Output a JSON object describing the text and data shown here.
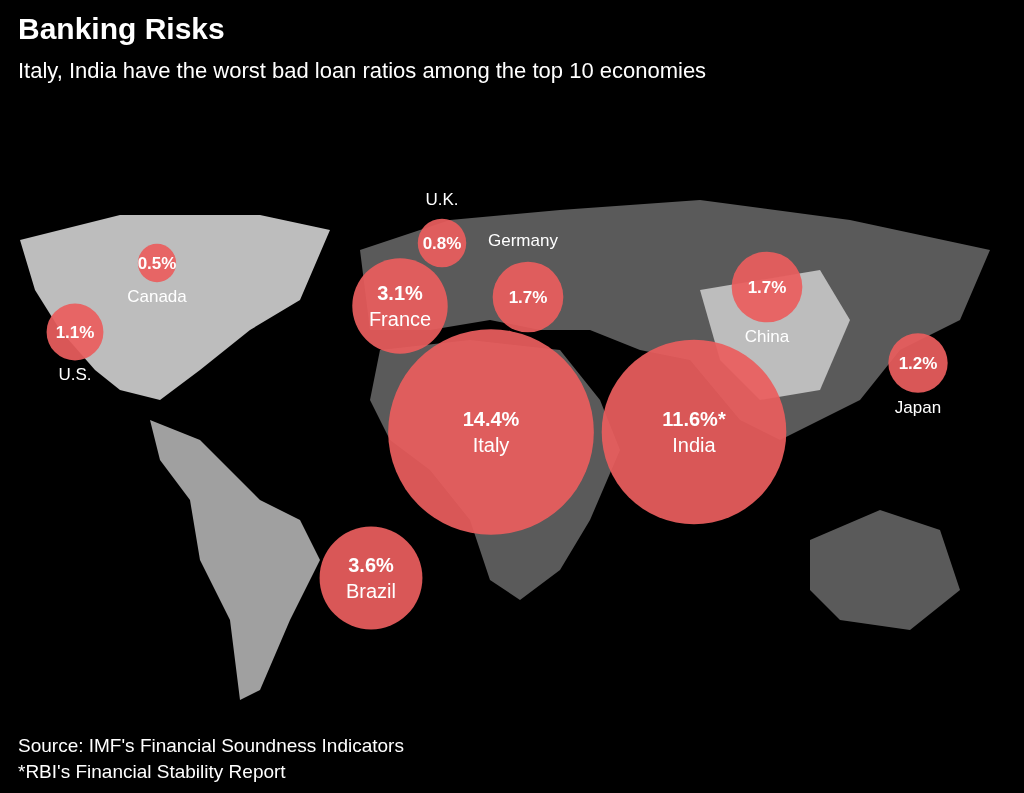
{
  "chart_data": {
    "type": "other",
    "title": "Banking Risks",
    "subtitle": "Italy, India have the worst bad loan ratios among the top 10 economies",
    "categories": [
      "U.S.",
      "Canada",
      "U.K.",
      "Germany",
      "France",
      "Italy",
      "China",
      "India",
      "Japan",
      "Brazil"
    ],
    "values": [
      1.1,
      0.5,
      0.8,
      1.7,
      3.1,
      14.4,
      1.7,
      11.6,
      1.2,
      3.6
    ],
    "value_labels": [
      "1.1%",
      "0.5%",
      "0.8%",
      "1.7%",
      "3.1%",
      "14.4%",
      "1.7%",
      "11.6%*",
      "1.2%",
      "3.6%"
    ],
    "color": "#ea5e5e",
    "annotations": [
      "Source: IMF's Financial Soundness Indicators",
      "*RBI's Financial Stability Report"
    ]
  }
}
